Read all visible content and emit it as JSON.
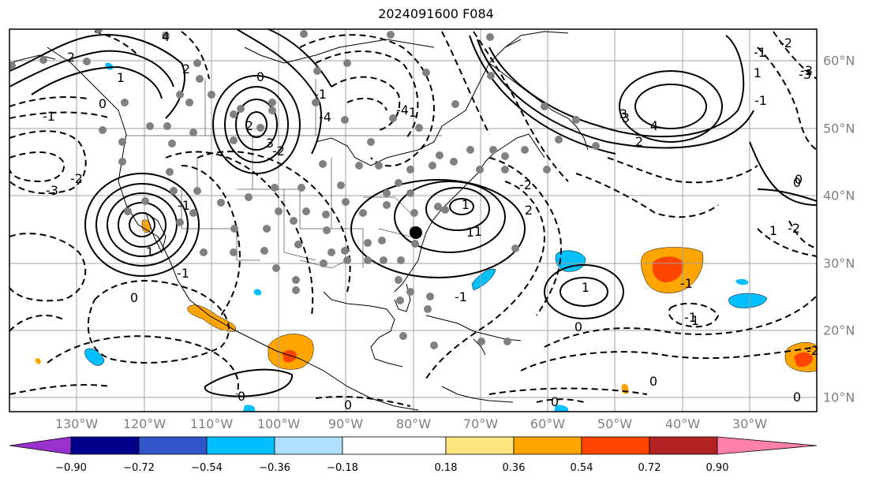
{
  "title": "2024091600 F084",
  "longitude_labels": [
    "130°W",
    "120°W",
    "110°W",
    "100°W",
    "90°W",
    "80°W",
    "70°W",
    "60°W",
    "50°W",
    "40°W",
    "30°W"
  ],
  "latitude_labels": [
    "60°N",
    "50°N",
    "40°N",
    "30°N",
    "20°N",
    "10°N"
  ],
  "colorbar": {
    "ticks": [
      "−0.90",
      "−0.72",
      "−0.54",
      "−0.36",
      "−0.18",
      "0.18",
      "0.36",
      "0.54",
      "0.72",
      "0.90"
    ],
    "colors": [
      "#9932cc",
      "#00008b",
      "#3355cc",
      "#00bfff",
      "#b0e0ff",
      "#ffffff",
      "#ffe680",
      "#ffa500",
      "#ff4500",
      "#b22222",
      "#ff80aa"
    ]
  },
  "contour_labels": [
    "4",
    "2",
    "2",
    "1",
    "0",
    "-1",
    "0",
    "-3",
    "-2",
    "2",
    "-4",
    "-2",
    "-4",
    "3",
    "-1",
    "1",
    "0",
    "-2",
    "0",
    "-1",
    "2",
    "1",
    "4",
    "3",
    "1",
    "0",
    "0",
    "1",
    "-1",
    "1",
    "-1",
    "3",
    "1",
    "2",
    "-3",
    "1",
    "0",
    "0",
    "-1",
    "-2",
    "0",
    "-2",
    "1",
    "-2",
    "-1",
    "0",
    "-1",
    "0",
    "-3",
    "1",
    "-1"
  ],
  "legend_colors": {
    "coast": "#000000",
    "grid": "#a0a0a0",
    "stations": "#808080",
    "label_gray": "#808080"
  }
}
